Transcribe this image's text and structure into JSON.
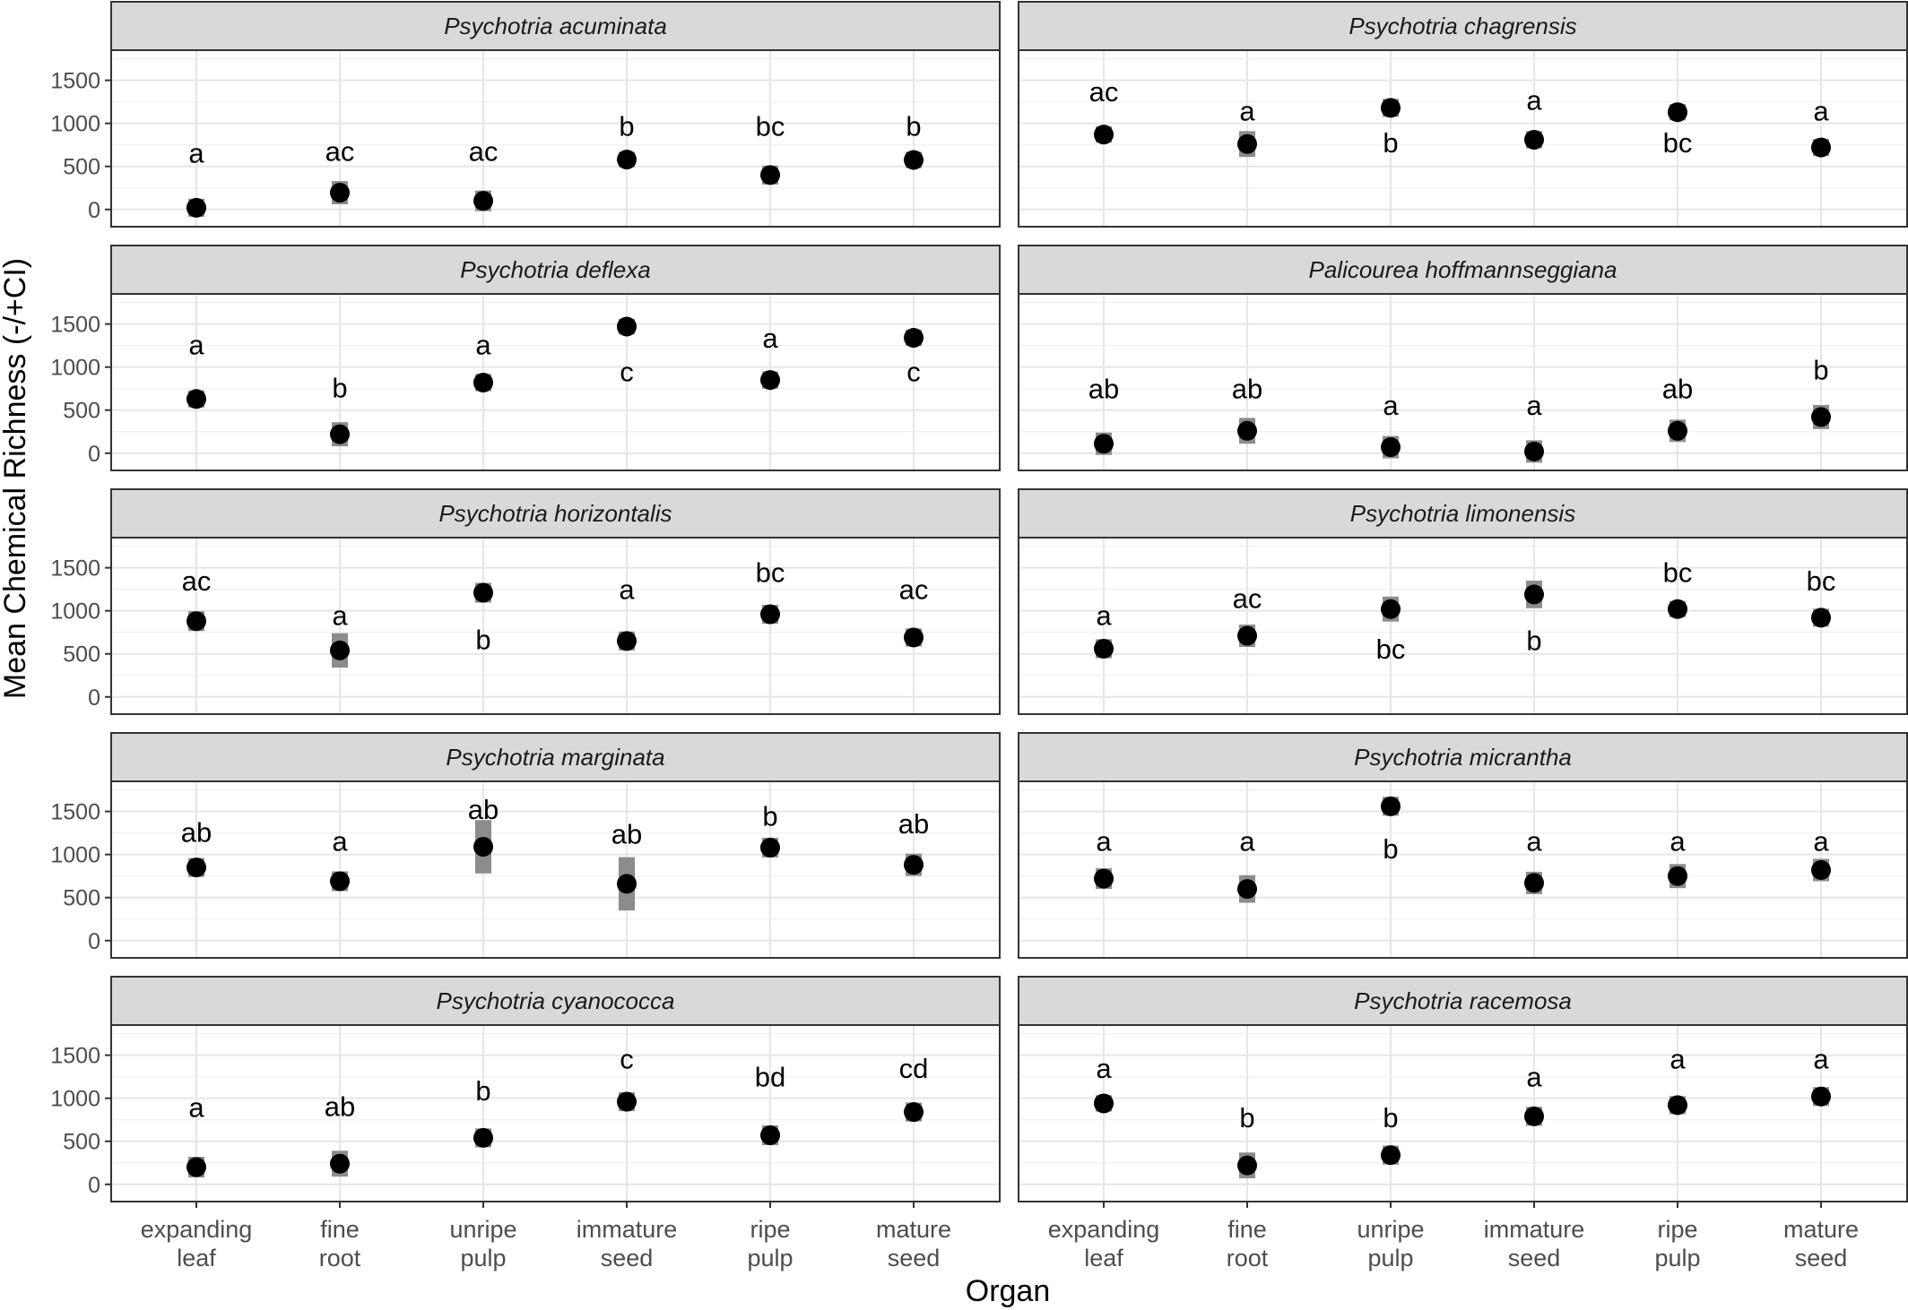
{
  "chart_data": {
    "type": "scatter",
    "xlabel": "Organ",
    "ylabel": "Mean Chemical Richness (-/+CI)",
    "categories": [
      [
        "expanding",
        "leaf"
      ],
      [
        "fine",
        "root"
      ],
      [
        "unripe",
        "pulp"
      ],
      [
        "immature",
        "seed"
      ],
      [
        "ripe",
        "pulp"
      ],
      [
        "mature",
        "seed"
      ]
    ],
    "yticks": [
      0,
      500,
      1000,
      1500
    ],
    "ylim": [
      -200,
      1850
    ],
    "grid": true,
    "panels": [
      {
        "title": "Psychotria acuminata",
        "values": [
          20,
          195,
          100,
          580,
          400,
          575
        ],
        "ci": [
          105,
          135,
          120,
          90,
          110,
          95
        ],
        "letters": [
          {
            "text": "a",
            "y": 660
          },
          {
            "text": "ac",
            "y": 680
          },
          {
            "text": "ac",
            "y": 680
          },
          {
            "text": "b",
            "y": 970
          },
          {
            "text": "bc",
            "y": 970
          },
          {
            "text": "b",
            "y": 970
          }
        ]
      },
      {
        "title": "Psychotria chagrensis",
        "values": [
          870,
          760,
          1180,
          810,
          1130,
          720
        ],
        "ci": [
          95,
          150,
          105,
          100,
          95,
          100
        ],
        "letters": [
          {
            "text": "ac",
            "y": 1370
          },
          {
            "text": "a",
            "y": 1150
          },
          {
            "text": "b",
            "y": 780
          },
          {
            "text": "a",
            "y": 1270
          },
          {
            "text": "bc",
            "y": 780
          },
          {
            "text": "a",
            "y": 1150
          }
        ]
      },
      {
        "title": "Psychotria deflexa",
        "values": [
          630,
          220,
          820,
          1470,
          850,
          1340
        ],
        "ci": [
          100,
          140,
          100,
          90,
          100,
          95
        ],
        "letters": [
          {
            "text": "a",
            "y": 1260
          },
          {
            "text": "b",
            "y": 760
          },
          {
            "text": "a",
            "y": 1260
          },
          {
            "text": "c",
            "y": 950
          },
          {
            "text": "a",
            "y": 1340
          },
          {
            "text": "c",
            "y": 950
          }
        ]
      },
      {
        "title": "Palicourea hoffmannseggiana",
        "values": [
          110,
          260,
          70,
          20,
          260,
          420
        ],
        "ci": [
          130,
          150,
          130,
          130,
          130,
          140
        ],
        "letters": [
          {
            "text": "ab",
            "y": 750
          },
          {
            "text": "ab",
            "y": 750
          },
          {
            "text": "a",
            "y": 560
          },
          {
            "text": "a",
            "y": 560
          },
          {
            "text": "ab",
            "y": 750
          },
          {
            "text": "b",
            "y": 970
          }
        ]
      },
      {
        "title": "Psychotria horizontalis",
        "values": [
          880,
          540,
          1210,
          650,
          960,
          690
        ],
        "ci": [
          115,
          200,
          115,
          110,
          110,
          105
        ],
        "letters": [
          {
            "text": "ac",
            "y": 1350
          },
          {
            "text": "a",
            "y": 950
          },
          {
            "text": "b",
            "y": 670
          },
          {
            "text": "a",
            "y": 1250
          },
          {
            "text": "bc",
            "y": 1450
          },
          {
            "text": "ac",
            "y": 1250
          }
        ]
      },
      {
        "title": "Psychotria limonensis",
        "values": [
          560,
          710,
          1020,
          1190,
          1020,
          920
        ],
        "ci": [
          110,
          130,
          145,
          160,
          95,
          105
        ],
        "letters": [
          {
            "text": "a",
            "y": 950
          },
          {
            "text": "ac",
            "y": 1150
          },
          {
            "text": "bc",
            "y": 560
          },
          {
            "text": "b",
            "y": 660
          },
          {
            "text": "bc",
            "y": 1450
          },
          {
            "text": "bc",
            "y": 1350
          }
        ]
      },
      {
        "title": "Psychotria marginata",
        "values": [
          850,
          690,
          1090,
          660,
          1080,
          880
        ],
        "ci": [
          110,
          115,
          310,
          310,
          115,
          130
        ],
        "letters": [
          {
            "text": "ab",
            "y": 1260
          },
          {
            "text": "a",
            "y": 1160
          },
          {
            "text": "ab",
            "y": 1530
          },
          {
            "text": "ab",
            "y": 1240
          },
          {
            "text": "b",
            "y": 1450
          },
          {
            "text": "ab",
            "y": 1360
          }
        ]
      },
      {
        "title": "Psychotria micrantha",
        "values": [
          720,
          600,
          1560,
          670,
          750,
          820
        ],
        "ci": [
          120,
          160,
          110,
          130,
          140,
          130
        ],
        "letters": [
          {
            "text": "a",
            "y": 1160
          },
          {
            "text": "a",
            "y": 1160
          },
          {
            "text": "b",
            "y": 1070
          },
          {
            "text": "a",
            "y": 1160
          },
          {
            "text": "a",
            "y": 1160
          },
          {
            "text": "a",
            "y": 1160
          }
        ]
      },
      {
        "title": "Psychotria cyanococca",
        "values": [
          200,
          240,
          540,
          960,
          570,
          840
        ],
        "ci": [
          120,
          150,
          110,
          110,
          115,
          110
        ],
        "letters": [
          {
            "text": "a",
            "y": 900
          },
          {
            "text": "ab",
            "y": 910
          },
          {
            "text": "b",
            "y": 1090
          },
          {
            "text": "c",
            "y": 1460
          },
          {
            "text": "bd",
            "y": 1250
          },
          {
            "text": "cd",
            "y": 1350
          }
        ]
      },
      {
        "title": "Psychotria racemosa",
        "values": [
          940,
          220,
          340,
          790,
          920,
          1020
        ],
        "ci": [
          95,
          150,
          110,
          110,
          105,
          110
        ],
        "letters": [
          {
            "text": "a",
            "y": 1350
          },
          {
            "text": "b",
            "y": 780
          },
          {
            "text": "b",
            "y": 780
          },
          {
            "text": "a",
            "y": 1250
          },
          {
            "text": "a",
            "y": 1460
          },
          {
            "text": "a",
            "y": 1460
          }
        ]
      }
    ]
  }
}
